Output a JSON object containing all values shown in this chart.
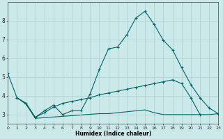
{
  "xlabel": "Humidex (Indice chaleur)",
  "background_color": "#cce9e9",
  "grid_color": "#afd0d0",
  "line_color": "#006666",
  "ylim": [
    2.5,
    9.0
  ],
  "xlim": [
    0,
    23
  ],
  "yticks": [
    3,
    4,
    5,
    6,
    7,
    8
  ],
  "xticks": [
    0,
    1,
    2,
    3,
    4,
    5,
    6,
    7,
    8,
    9,
    10,
    11,
    12,
    13,
    14,
    15,
    16,
    17,
    18,
    19,
    20,
    21,
    22,
    23
  ],
  "curve_x": [
    0,
    1,
    2,
    3,
    4,
    5,
    6,
    7,
    8,
    9,
    10,
    11,
    12,
    13,
    14,
    15,
    16,
    17,
    18,
    19,
    20,
    21,
    22,
    23
  ],
  "curve_y": [
    5.2,
    3.9,
    3.6,
    2.85,
    3.2,
    3.5,
    3.0,
    3.2,
    3.2,
    4.1,
    5.4,
    6.5,
    6.6,
    7.25,
    8.15,
    8.5,
    7.8,
    6.95,
    6.45,
    5.5,
    4.6,
    3.9,
    3.35,
    3.05
  ],
  "upper_x": [
    1,
    2,
    3,
    4,
    5,
    6,
    7,
    8,
    9,
    10,
    11,
    12,
    13,
    14,
    15,
    16,
    17,
    18,
    19,
    20,
    21,
    22,
    23
  ],
  "upper_y": [
    3.9,
    3.6,
    2.85,
    3.1,
    3.4,
    3.6,
    3.7,
    3.8,
    3.9,
    4.05,
    4.15,
    4.25,
    4.35,
    4.45,
    4.55,
    4.65,
    4.75,
    4.85,
    4.65,
    3.9,
    3.0,
    null,
    null
  ],
  "lower_x": [
    1,
    2,
    3,
    10,
    11,
    12,
    13,
    14,
    15,
    16,
    17,
    18,
    19,
    20,
    21,
    22,
    23
  ],
  "lower_y": [
    3.9,
    3.55,
    2.8,
    3.05,
    3.05,
    3.1,
    3.15,
    3.2,
    3.25,
    3.1,
    3.0,
    3.0,
    3.0,
    3.0,
    3.0,
    3.0,
    3.05
  ]
}
